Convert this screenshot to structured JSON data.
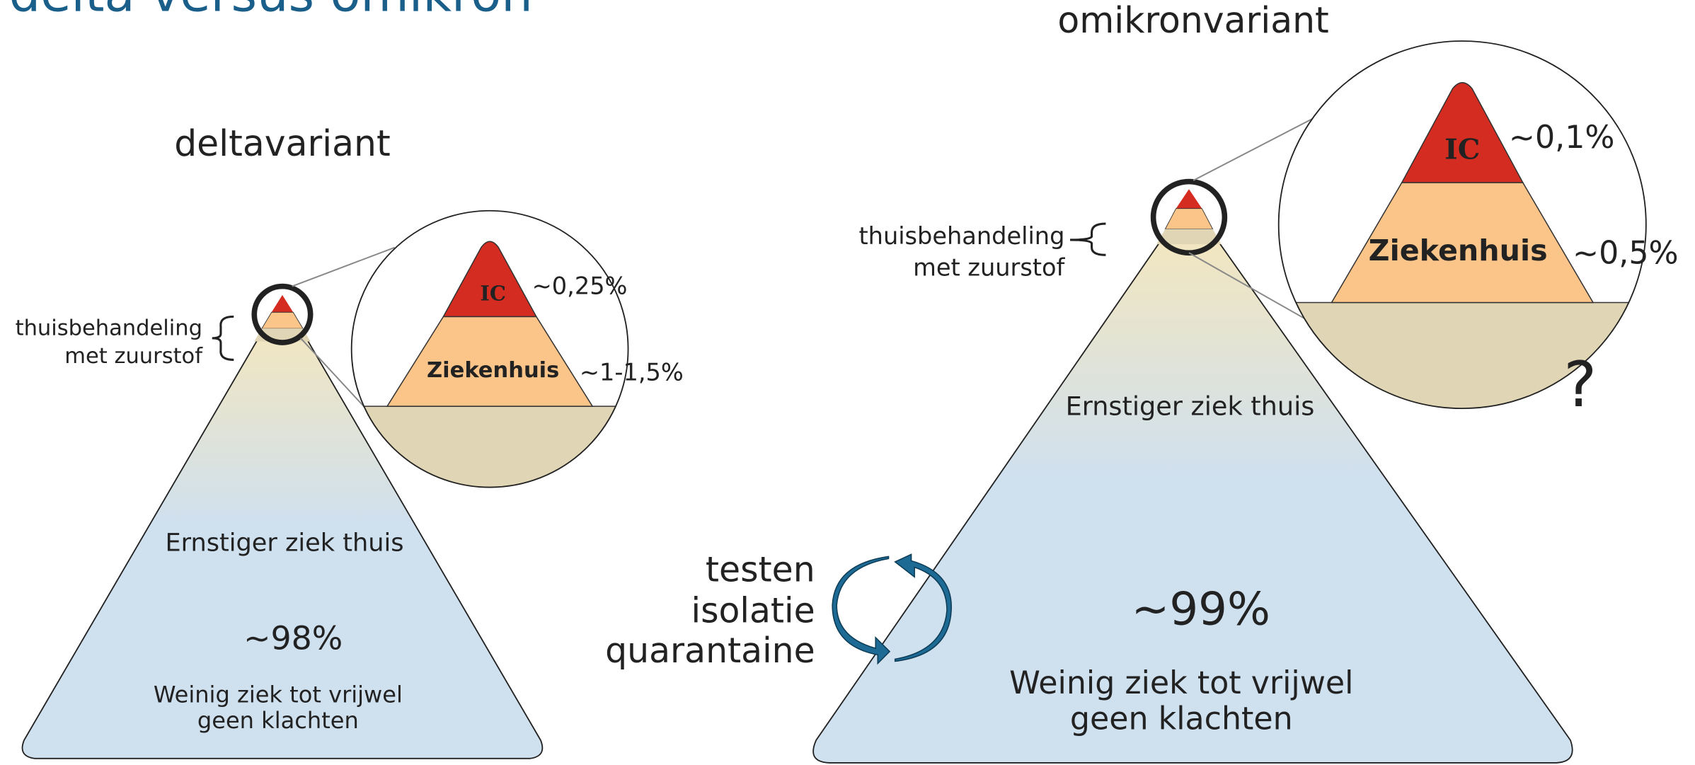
{
  "title": "delta versus omikron",
  "delta": {
    "title": "deltavariant",
    "bracket_label": [
      "thuisbehandeling",
      "met zuurstof"
    ],
    "ic_label": "IC",
    "ic_pct": "~0,25%",
    "hospital_label": "Ziekenhuis",
    "hospital_pct": "~1-1,5%",
    "home_label": "Ernstiger ziek thuis",
    "mild_pct": "~98%",
    "mild_label": [
      "Weinig ziek tot vrijwel",
      "geen klachten"
    ]
  },
  "omicron": {
    "title": "omikronvariant",
    "bracket_label": [
      "thuisbehandeling",
      "met zuurstof"
    ],
    "ic_label": "IC",
    "ic_pct": "~0,1%",
    "hospital_label": "Ziekenhuis",
    "hospital_pct": "~0,5%",
    "unknown": "?",
    "home_label": "Ernstiger ziek thuis",
    "mild_pct": "~99%",
    "mild_label": [
      "Weinig ziek tot vrijwel",
      "geen klachten"
    ]
  },
  "measures": [
    "testen",
    "isolatie",
    "quarantaine"
  ]
}
